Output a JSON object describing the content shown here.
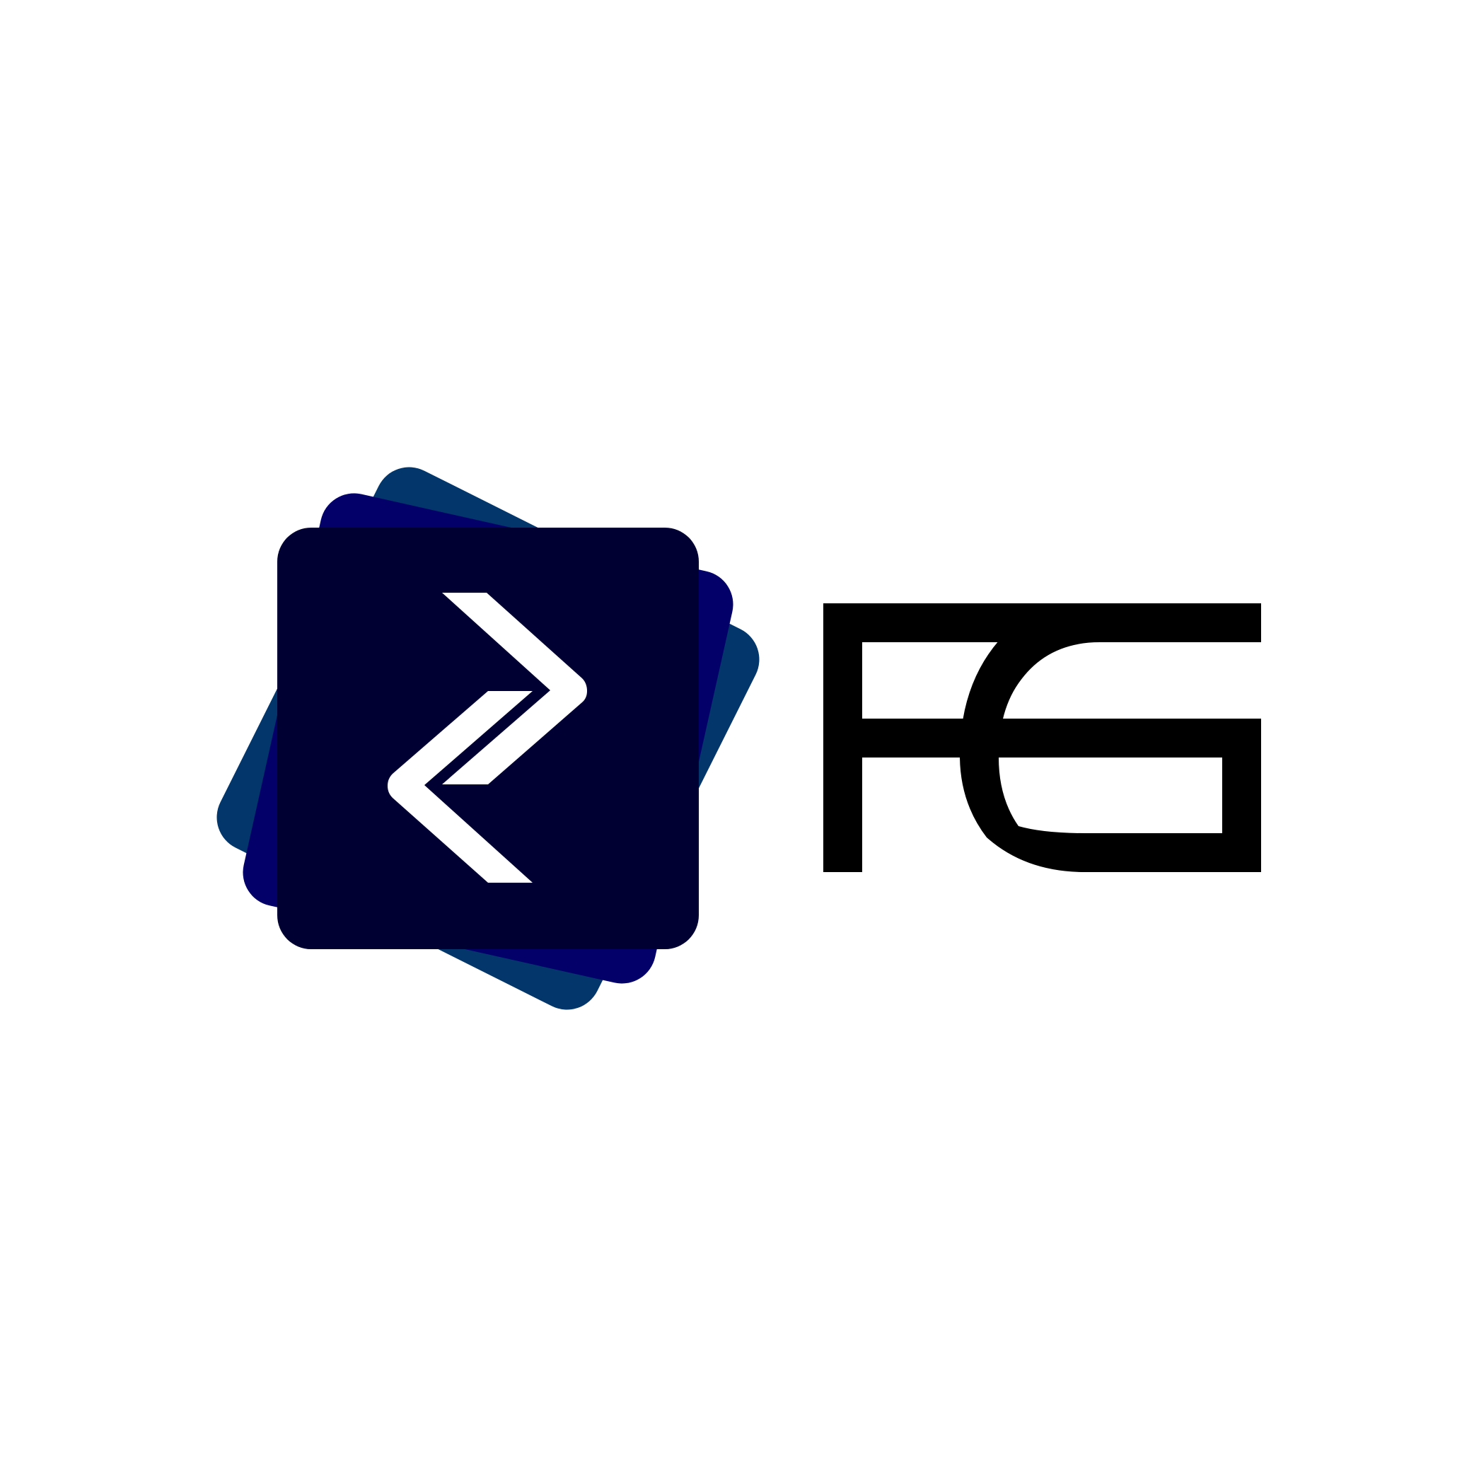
{
  "logo": {
    "wordmark": "FG",
    "icon_name": "stacked-squares-chevron-icon",
    "colors": {
      "background": "#ffffff",
      "back_square": "#03366a",
      "middle_square": "#04006a",
      "front_square": "#000033",
      "chevron": "#ffffff",
      "wordmark": "#000000"
    }
  }
}
